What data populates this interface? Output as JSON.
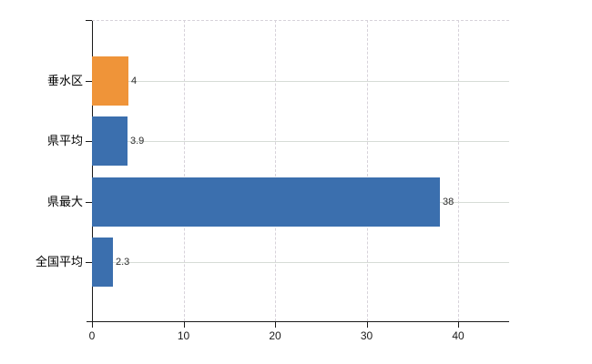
{
  "colors": {
    "background": "#ffffff",
    "bar_default": "#3b6fae",
    "bar_highlight": "#ef9439",
    "grid_solid": "#d6dcd6",
    "grid_dashed": "#d7d2da",
    "axis": "#1a1a1a",
    "category_label": "#000000",
    "value_label": "#2b2b2b"
  },
  "chart_data": {
    "type": "bar",
    "orientation": "horizontal",
    "title": "",
    "xlabel": "",
    "ylabel": "",
    "categories": [
      "垂水区",
      "県平均",
      "県最大",
      "全国平均"
    ],
    "values": [
      4,
      3.9,
      38,
      2.3
    ],
    "value_labels": [
      "4",
      "3.9",
      "38",
      "2.3"
    ],
    "bar_colors": [
      "#ef9439",
      "#3b6fae",
      "#3b6fae",
      "#3b6fae"
    ],
    "highlight_category": "垂水区",
    "x_ticks": [
      0,
      10,
      20,
      30,
      40
    ],
    "x_tick_labels": [
      "0",
      "10",
      "20",
      "30",
      "40"
    ],
    "xlim": [
      0,
      45.6
    ],
    "grid": "horizontal solid at category centers, vertical dashed at x ticks, dashed top border",
    "legend": "none"
  }
}
